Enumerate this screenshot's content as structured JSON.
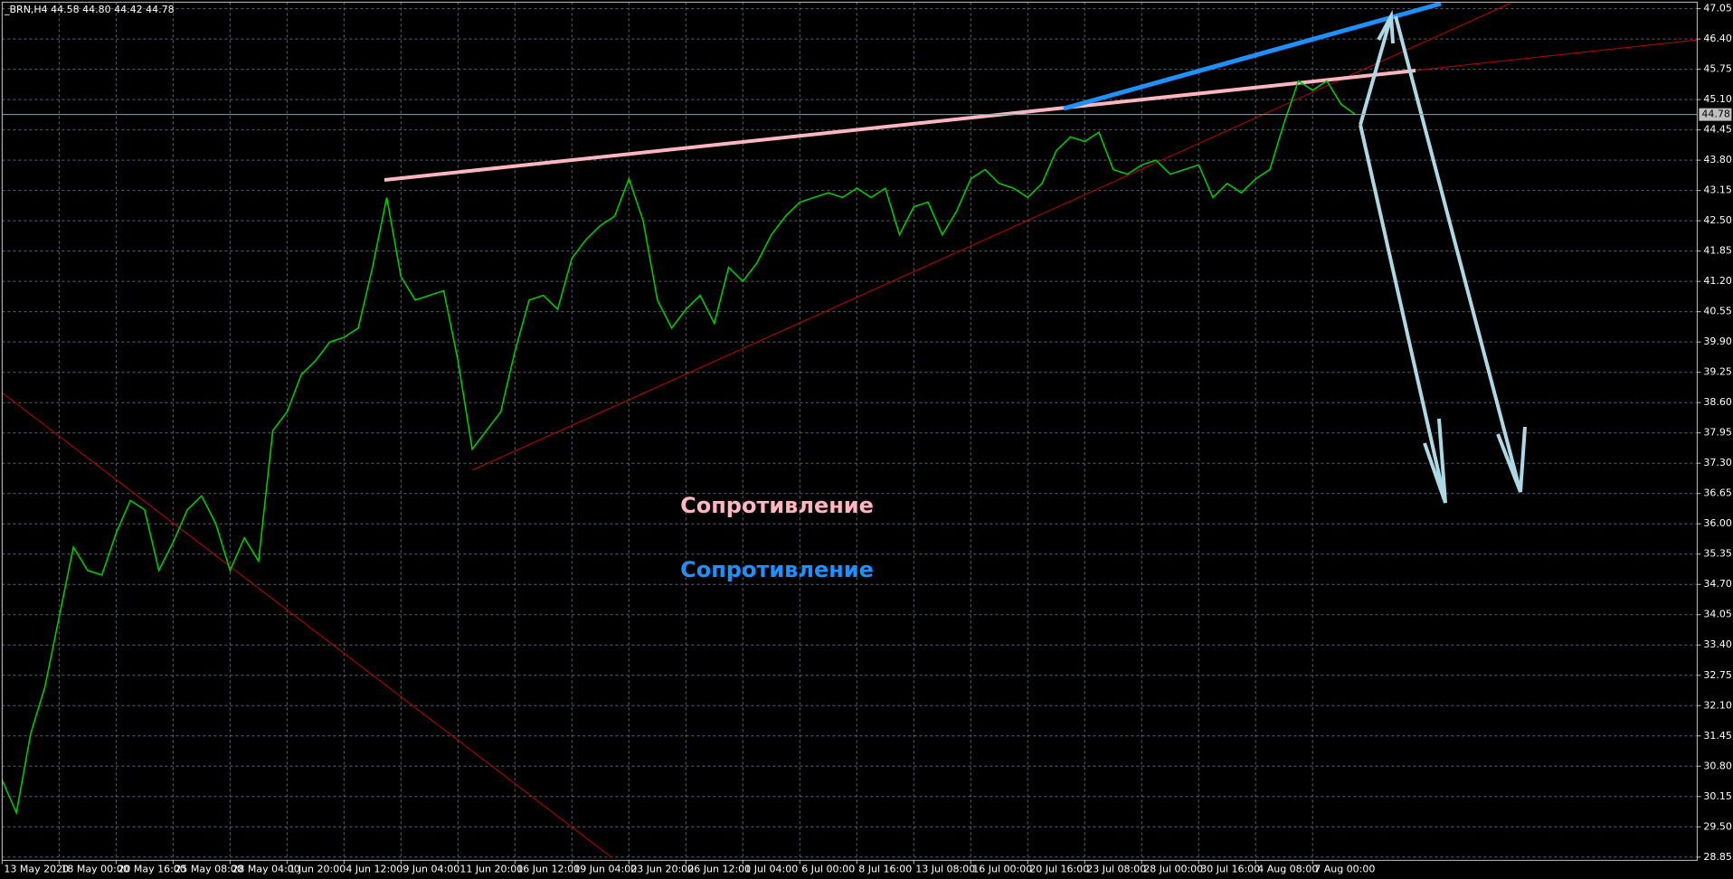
{
  "chart_data": {
    "type": "line",
    "title": "_BRN,H4  44.58 44.80 44.42 44.78",
    "categories": [
      "13 May 2020",
      null,
      null,
      null,
      "18 May 00:00",
      null,
      null,
      null,
      "20 May 16:00",
      null,
      null,
      null,
      "25 May 08:00",
      null,
      null,
      null,
      "28 May 04:00",
      null,
      null,
      null,
      "1 Jun 20:00",
      null,
      null,
      null,
      "4 Jun 12:00",
      null,
      null,
      null,
      "9 Jun 04:00",
      null,
      null,
      null,
      "11 Jun 20:00",
      null,
      null,
      null,
      "16 Jun 12:00",
      null,
      null,
      null,
      "19 Jun 04:00",
      null,
      null,
      null,
      "23 Jun 20:00",
      null,
      null,
      null,
      "26 Jun 12:00",
      null,
      null,
      null,
      "1 Jul 04:00",
      null,
      null,
      null,
      "6 Jul 00:00",
      null,
      null,
      null,
      "8 Jul 16:00",
      null,
      null,
      null,
      "13 Jul 08:00",
      null,
      null,
      null,
      "16 Jul 00:00",
      null,
      null,
      null,
      "20 Jul 16:00",
      null,
      null,
      null,
      "23 Jul 08:00",
      null,
      null,
      null,
      "28 Jul 00:00",
      null,
      null,
      null,
      "30 Jul 16:00",
      null,
      null,
      null,
      "4 Aug 08:00",
      null,
      null,
      null,
      "7 Aug 00:00",
      null,
      null,
      null,
      null,
      null,
      null,
      null,
      null,
      null,
      null,
      null,
      null,
      null,
      null,
      null,
      null,
      null,
      null,
      null,
      null,
      null,
      null,
      null,
      null,
      null,
      null,
      null
    ],
    "values": [
      30.5,
      29.8,
      31.5,
      32.5,
      34.0,
      35.5,
      35.0,
      34.9,
      35.8,
      36.5,
      36.3,
      35.0,
      35.6,
      36.3,
      36.6,
      36.0,
      35.0,
      35.7,
      35.2,
      38.0,
      38.4,
      39.2,
      39.5,
      39.9,
      40.0,
      40.2,
      41.5,
      43.0,
      41.3,
      40.8,
      40.9,
      41.0,
      39.5,
      37.6,
      38.0,
      38.4,
      39.7,
      40.8,
      40.9,
      40.6,
      41.7,
      42.1,
      42.4,
      42.6,
      43.4,
      42.5,
      40.8,
      40.2,
      40.6,
      40.9,
      40.3,
      41.5,
      41.2,
      41.6,
      42.2,
      42.6,
      42.9,
      43.0,
      43.1,
      43.0,
      43.2,
      43.0,
      43.2,
      42.2,
      42.8,
      42.9,
      42.2,
      42.7,
      43.4,
      43.6,
      43.3,
      43.2,
      43.0,
      43.3,
      44.0,
      44.3,
      44.2,
      44.4,
      43.6,
      43.5,
      43.7,
      43.8,
      43.5,
      43.6,
      43.7,
      43.0,
      43.3,
      43.1,
      43.4,
      43.6,
      44.6,
      45.5,
      45.3,
      45.5,
      45.0,
      44.78,
      null,
      null,
      null,
      null,
      null,
      null,
      null,
      null,
      null,
      null,
      null,
      null,
      null,
      null,
      null,
      null,
      null,
      null,
      null,
      null,
      null,
      null,
      null,
      null
    ],
    "color": "#00c800",
    "ylim": [
      28.78,
      47.19
    ],
    "yticks": [
      47.05,
      {
        "value": 46.4,
        "label": "46.40"
      },
      45.75,
      {
        "value": 45.1,
        "label": "45.10"
      },
      44.45,
      {
        "value": 43.8,
        "label": "43.80"
      },
      43.15,
      {
        "value": 42.5,
        "label": "42.50"
      },
      41.85,
      {
        "value": 41.2,
        "label": "41.20"
      },
      40.55,
      {
        "value": 39.9,
        "label": "39.90"
      },
      39.25,
      {
        "value": 38.6,
        "label": "38.60"
      },
      37.95,
      {
        "value": 37.3,
        "label": "37.30"
      },
      36.65,
      {
        "value": 36,
        "label": "36.00"
      },
      35.35,
      {
        "value": 34.7,
        "label": "34.70"
      },
      34.05,
      {
        "value": 33.4,
        "label": "33.40"
      },
      32.75,
      {
        "value": 32.1,
        "label": "32.10"
      },
      31.45,
      {
        "value": 30.8,
        "label": "30.80"
      },
      30.15,
      {
        "value": 29.5,
        "label": "29.50"
      },
      28.85
    ],
    "grid": true,
    "last_price": 44.78,
    "annotations": [
      {
        "text": "Сопротивление",
        "color": "#ffb6c1"
      },
      {
        "text": "Сопротивление",
        "color": "#1e90ff"
      }
    ]
  }
}
